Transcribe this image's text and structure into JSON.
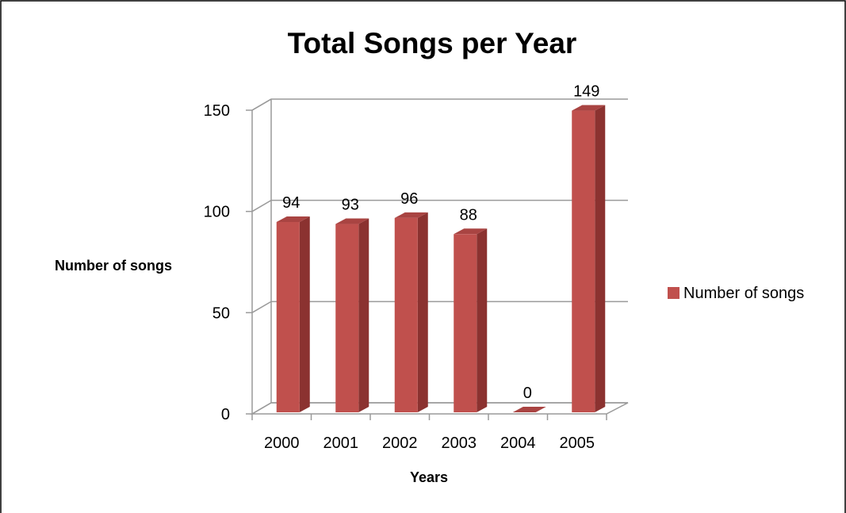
{
  "chart_data": {
    "type": "bar",
    "title": "Total Songs per Year",
    "xlabel": "Years",
    "ylabel": "Number of songs",
    "categories": [
      "2000",
      "2001",
      "2002",
      "2003",
      "2004",
      "2005"
    ],
    "series": [
      {
        "name": "Number of songs",
        "values": [
          94,
          93,
          96,
          88,
          0,
          149
        ],
        "color": "#c0504d"
      }
    ],
    "data_labels": [
      "94",
      "93",
      "96",
      "88",
      "0",
      "149"
    ],
    "yticks": [
      "0",
      "50",
      "100",
      "150"
    ],
    "ylim": [
      0,
      150
    ],
    "grid": true,
    "legend_position": "right",
    "style": "3d-column"
  }
}
